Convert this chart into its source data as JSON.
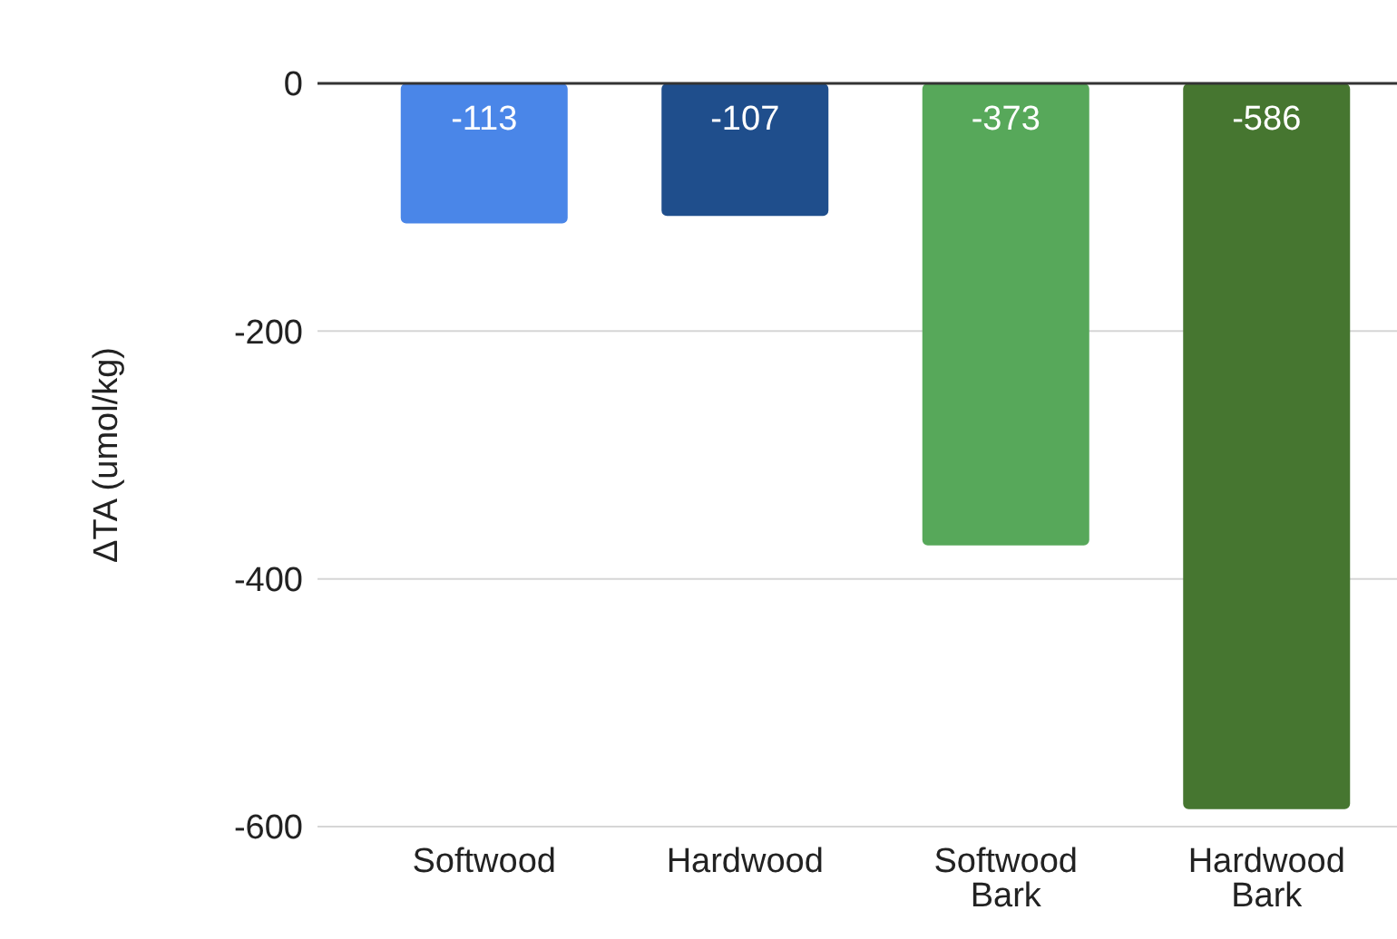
{
  "chart_data": {
    "type": "bar",
    "ylabel": "ΔTA (umol/kg)",
    "categories": [
      "Softwood",
      "Hardwood",
      "Softwood Bark",
      "Hardwood Bark"
    ],
    "values": [
      -113,
      -107,
      -373,
      -586
    ],
    "colors": [
      "#4a86e8",
      "#1f4e8c",
      "#57a85a",
      "#467630"
    ],
    "ylim": [
      -600,
      0
    ],
    "yticks": [
      0,
      -200,
      -400,
      -600
    ],
    "grid": "y",
    "data_labels": true,
    "legend": false
  }
}
